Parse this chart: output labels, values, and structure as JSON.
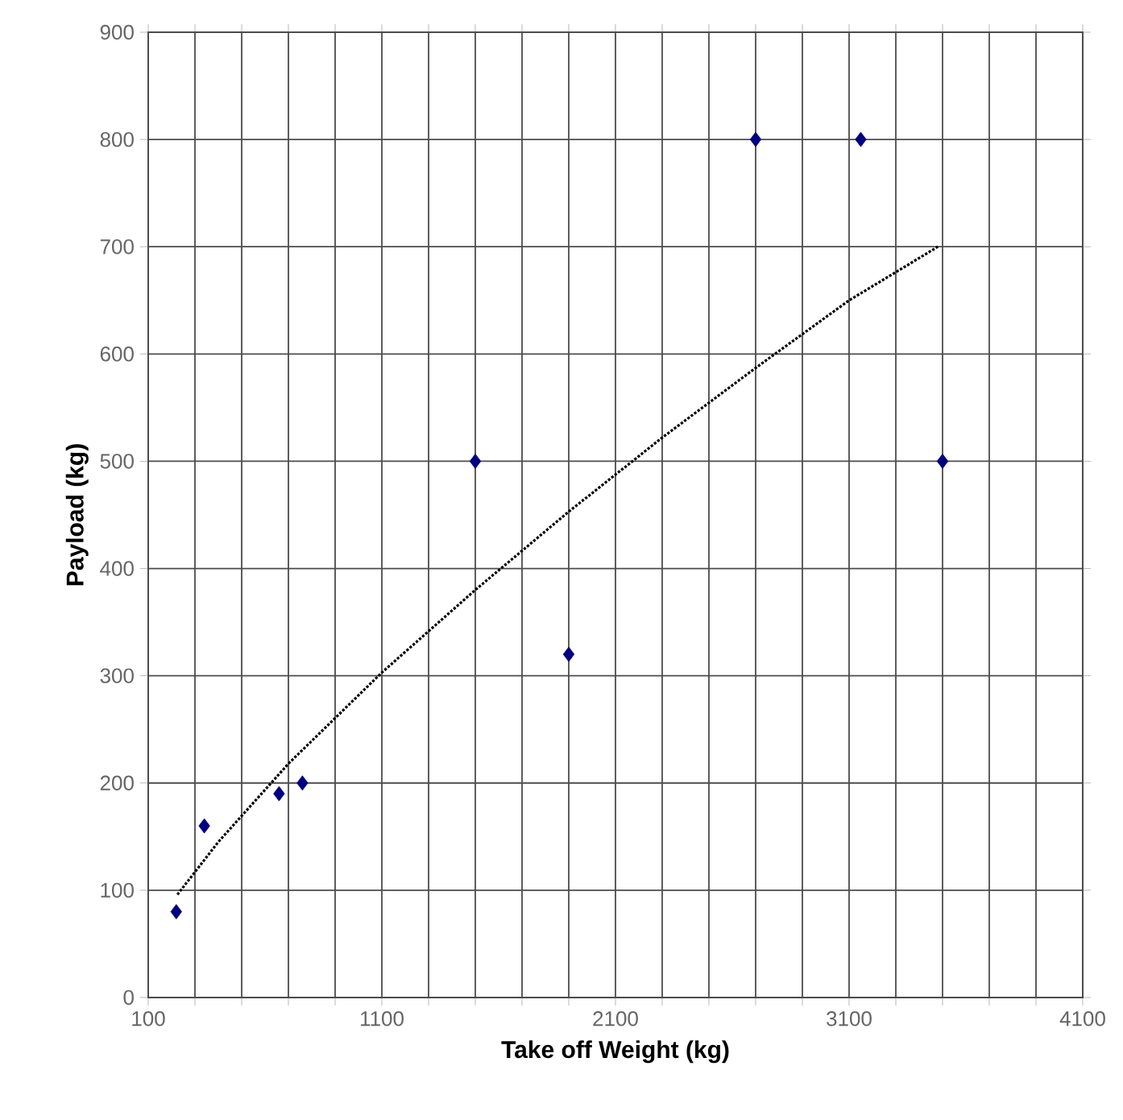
{
  "chart_data": {
    "type": "scatter",
    "xlabel": "Take off Weight (kg)",
    "ylabel": "Payload (kg)",
    "series": [
      {
        "color": "#000080",
        "marker": "diamond",
        "x": [
          220,
          340,
          660,
          760,
          1500,
          1900,
          2700,
          3150,
          3500
        ],
        "values": [
          80,
          160,
          190,
          200,
          500,
          320,
          800,
          800,
          500
        ]
      },
      {
        "type": "line",
        "color": "#000000",
        "marker": "none",
        "line_style": "dotted",
        "x": [
          225,
          400,
          700,
          1100,
          1500,
          1900,
          2300,
          2700,
          3100,
          3480
        ],
        "values": [
          96,
          145,
          218,
          303,
          380,
          453,
          522,
          587,
          650,
          700
        ]
      }
    ],
    "xlim": [
      100,
      4100
    ],
    "xticks": [
      100,
      {
        "value": 300,
        "label": null
      },
      {
        "value": 500,
        "label": null
      },
      {
        "value": 700,
        "label": null
      },
      {
        "value": 900,
        "label": null
      },
      1100,
      {
        "value": 1300,
        "label": null
      },
      {
        "value": 1500,
        "label": null
      },
      {
        "value": 1700,
        "label": null
      },
      {
        "value": 1900,
        "label": null
      },
      2100,
      {
        "value": 2300,
        "label": null
      },
      {
        "value": 2500,
        "label": null
      },
      {
        "value": 2700,
        "label": null
      },
      {
        "value": 2900,
        "label": null
      },
      3100,
      {
        "value": 3300,
        "label": null
      },
      {
        "value": 3500,
        "label": null
      },
      {
        "value": 3700,
        "label": null
      },
      {
        "value": 3900,
        "label": null
      },
      4100
    ],
    "ylim": [
      0,
      900
    ],
    "yticks": [
      0,
      100,
      200,
      300,
      400,
      500,
      600,
      700,
      800,
      900
    ],
    "grid": true
  }
}
